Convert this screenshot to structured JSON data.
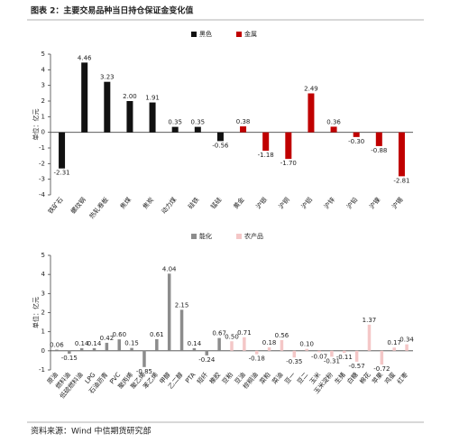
{
  "title": "图表 2：主要交易品种当日持仓保证金变化值",
  "source": "资料来源：Wind 中信期货研究部",
  "chart_data": [
    {
      "type": "bar",
      "y_label": "单位：亿元",
      "legend": "top",
      "categories": [
        "铁矿石",
        "螺纹钢",
        "热轧卷板",
        "焦煤",
        "焦炭",
        "动力煤",
        "硅铁",
        "锰硅",
        "黄金",
        "沪银",
        "沪铜",
        "沪铝",
        "沪锌",
        "沪铅",
        "沪镍",
        "沪锡"
      ],
      "series": [
        {
          "name": "黑色",
          "color": "#111111",
          "values": [
            -2.31,
            4.46,
            3.23,
            2.0,
            1.91,
            0.35,
            0.35,
            -0.56,
            null,
            null,
            null,
            null,
            null,
            null,
            null,
            null
          ],
          "value_labels": [
            "-2.31",
            "4.46",
            "3.23",
            "2.00",
            "1.91",
            "0.35",
            "0.35",
            "-0.56",
            null,
            null,
            null,
            null,
            null,
            null,
            null,
            null
          ]
        },
        {
          "name": "金属",
          "color": "#c00000",
          "values": [
            null,
            null,
            null,
            null,
            null,
            null,
            null,
            null,
            0.38,
            -1.18,
            -1.7,
            2.49,
            0.36,
            -0.3,
            -0.88,
            -2.81
          ],
          "value_labels": [
            null,
            null,
            null,
            null,
            null,
            null,
            null,
            null,
            "0.38",
            "-1.18",
            "-1.70",
            "2.49",
            "0.36",
            "-0.30",
            "-0.88",
            "-2.81"
          ]
        }
      ],
      "ylim": [
        -4,
        5
      ],
      "yticks": [
        -4,
        -3,
        -2,
        -1,
        0,
        1,
        2,
        3,
        4,
        5
      ]
    },
    {
      "type": "bar",
      "y_label": "单位：亿元",
      "legend": "top",
      "categories": [
        "原油",
        "燃料油",
        "低硫燃料油",
        "LPG",
        "石油沥青",
        "PVC",
        "聚丙烯",
        "聚乙烯",
        "苯乙烯",
        "甲醇",
        "乙二醇",
        "PTA",
        "短纤",
        "橡胶",
        "豆粕",
        "豆油",
        "棕榈油",
        "菜粕",
        "菜油",
        "豆一",
        "豆二",
        "玉米",
        "玉米淀粉",
        "生猪",
        "白糖",
        "棉花",
        "苹果",
        "鸡蛋",
        "红枣"
      ],
      "series": [
        {
          "name": "能化",
          "color": "#8c8c8c",
          "values": [
            0.06,
            -0.15,
            0.14,
            0.14,
            0.42,
            0.6,
            0.15,
            -0.85,
            0.61,
            4.04,
            2.15,
            0.14,
            -0.24,
            0.67,
            null,
            null,
            null,
            null,
            null,
            null,
            null,
            null,
            null,
            null,
            null,
            null,
            null,
            null,
            null
          ],
          "value_labels": [
            "0.06",
            "-0.15",
            "0.14",
            "0.14",
            "0.42",
            "0.60",
            "0.15",
            "-0.85",
            "0.61",
            "4.04",
            "2.15",
            "0.14",
            "-0.24",
            "0.67",
            null,
            null,
            null,
            null,
            null,
            null,
            null,
            null,
            null,
            null,
            null,
            null,
            null,
            null,
            null
          ]
        },
        {
          "name": "农产品",
          "color": "#f4c7c7",
          "values": [
            null,
            null,
            null,
            null,
            null,
            null,
            null,
            null,
            null,
            null,
            null,
            null,
            null,
            null,
            0.5,
            0.71,
            -0.18,
            0.18,
            0.56,
            -0.35,
            0.1,
            -0.07,
            -0.31,
            -0.11,
            -0.57,
            1.37,
            -0.72,
            0.17,
            0.34
          ],
          "value_labels": [
            null,
            null,
            null,
            null,
            null,
            null,
            null,
            null,
            null,
            null,
            null,
            null,
            null,
            null,
            "0.50",
            "0.71",
            "-0.18",
            "0.18",
            "0.56",
            "-0.35",
            "0.10",
            "-0.07",
            "-0.31",
            "-0.11",
            "-0.57",
            "1.37",
            "-0.72",
            "0.17",
            "0.34"
          ]
        }
      ],
      "ylim": [
        -1,
        5
      ],
      "yticks": [
        -1,
        0,
        1,
        2,
        3,
        4,
        5
      ]
    }
  ]
}
